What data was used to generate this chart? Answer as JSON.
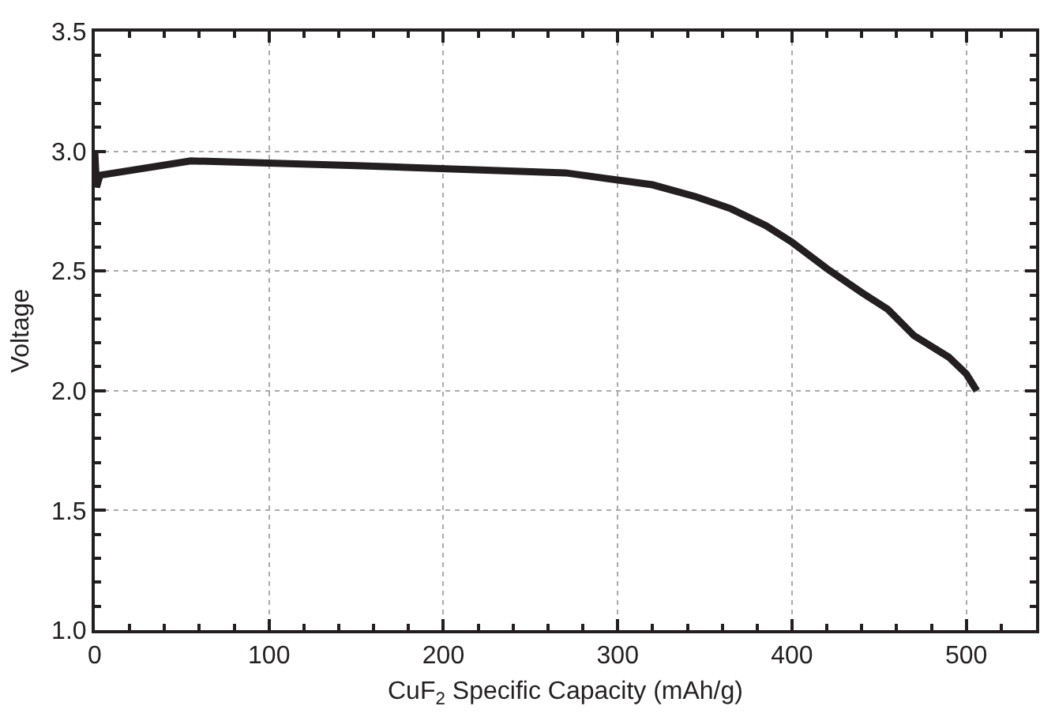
{
  "chart_data": {
    "type": "line",
    "xlabel": "CuF$_{2}$ Specific Capacity (mAh/g)",
    "ylabel": "Voltage",
    "x": [
      0,
      1,
      3,
      55,
      150,
      270,
      320,
      345,
      365,
      385,
      400,
      420,
      440,
      455,
      470,
      490,
      500,
      506
    ],
    "series": [
      {
        "color": "#231f20",
        "values": [
          3.0,
          2.85,
          2.9,
          2.96,
          2.94,
          2.91,
          2.86,
          2.81,
          2.76,
          2.69,
          2.62,
          2.51,
          2.41,
          2.34,
          2.23,
          2.14,
          2.07,
          2.0
        ]
      }
    ],
    "xlim": [
      0,
      540
    ],
    "xticks": [
      0,
      100,
      200,
      300,
      400,
      500
    ],
    "ylim": [
      1.0,
      3.5
    ],
    "yticks": [
      {
        "value": 1.0,
        "label": "1.0"
      },
      {
        "value": 1.5,
        "label": "1.5"
      },
      {
        "value": 2.0,
        "label": "2.0"
      },
      {
        "value": 2.5,
        "label": "2.5"
      },
      {
        "value": 3.0,
        "label": "3.0"
      },
      {
        "value": 3.5,
        "label": "3.5"
      }
    ],
    "grid": true,
    "line_style": "solid"
  }
}
